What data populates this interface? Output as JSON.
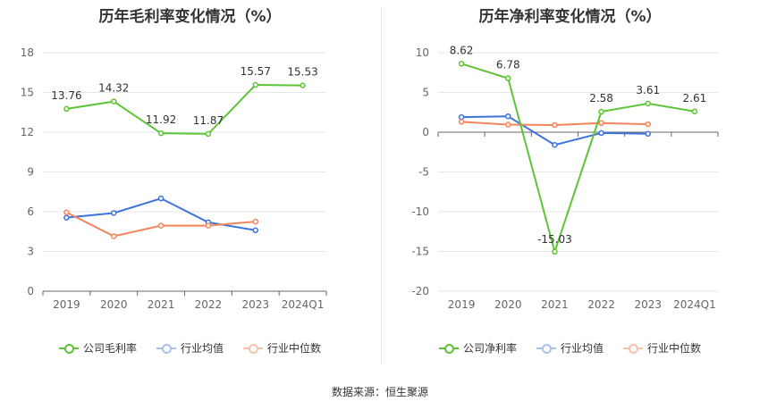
{
  "footer": {
    "source": "数据来源：恒生聚源"
  },
  "chart_data": [
    {
      "type": "line",
      "title": "历年毛利率变化情况（%）",
      "categories": [
        "2019",
        "2020",
        "2021",
        "2022",
        "2023",
        "2024Q1"
      ],
      "ylim": [
        0,
        18
      ],
      "yticks": [
        0,
        3,
        6,
        9,
        12,
        15,
        18
      ],
      "ytick_labels": [
        "0",
        "3",
        "6",
        "9",
        "12",
        "15",
        "18"
      ],
      "grid": true,
      "legend_position": "bottom",
      "series": [
        {
          "name": "公司毛利率",
          "color": "#5cc435",
          "values": [
            13.76,
            14.32,
            11.92,
            11.87,
            15.57,
            15.53
          ],
          "labels": [
            "13.76",
            "14.32",
            "11.92",
            "11.87",
            "15.57",
            "15.53"
          ]
        },
        {
          "name": "行业均值",
          "color": "#3c73dc",
          "values": [
            5.55,
            5.9,
            7.0,
            5.2,
            4.6,
            null
          ]
        },
        {
          "name": "行业中位数",
          "color": "#f5845a",
          "values": [
            5.95,
            4.15,
            4.95,
            4.95,
            5.25,
            null
          ]
        }
      ]
    },
    {
      "type": "line",
      "title": "历年净利率变化情况（%）",
      "categories": [
        "2019",
        "2020",
        "2021",
        "2022",
        "2023",
        "2024Q1"
      ],
      "ylim": [
        -20,
        10
      ],
      "yticks": [
        -20,
        -15,
        -10,
        -5,
        0,
        5,
        10
      ],
      "ytick_labels": [
        "-20",
        "-15",
        "-10",
        "-5",
        "0",
        "5",
        "10"
      ],
      "grid": true,
      "legend_position": "bottom",
      "series": [
        {
          "name": "公司净利率",
          "color": "#5cc435",
          "values": [
            8.62,
            6.78,
            -15.03,
            2.58,
            3.61,
            2.61
          ],
          "labels": [
            "8.62",
            "6.78",
            "-15.03",
            "2.58",
            "3.61",
            "2.61"
          ]
        },
        {
          "name": "行业均值",
          "color": "#3c73dc",
          "values": [
            1.9,
            2.0,
            -1.6,
            -0.1,
            -0.2,
            null
          ]
        },
        {
          "name": "行业中位数",
          "color": "#f5845a",
          "values": [
            1.3,
            0.95,
            0.9,
            1.15,
            1.0,
            null
          ]
        }
      ]
    }
  ]
}
